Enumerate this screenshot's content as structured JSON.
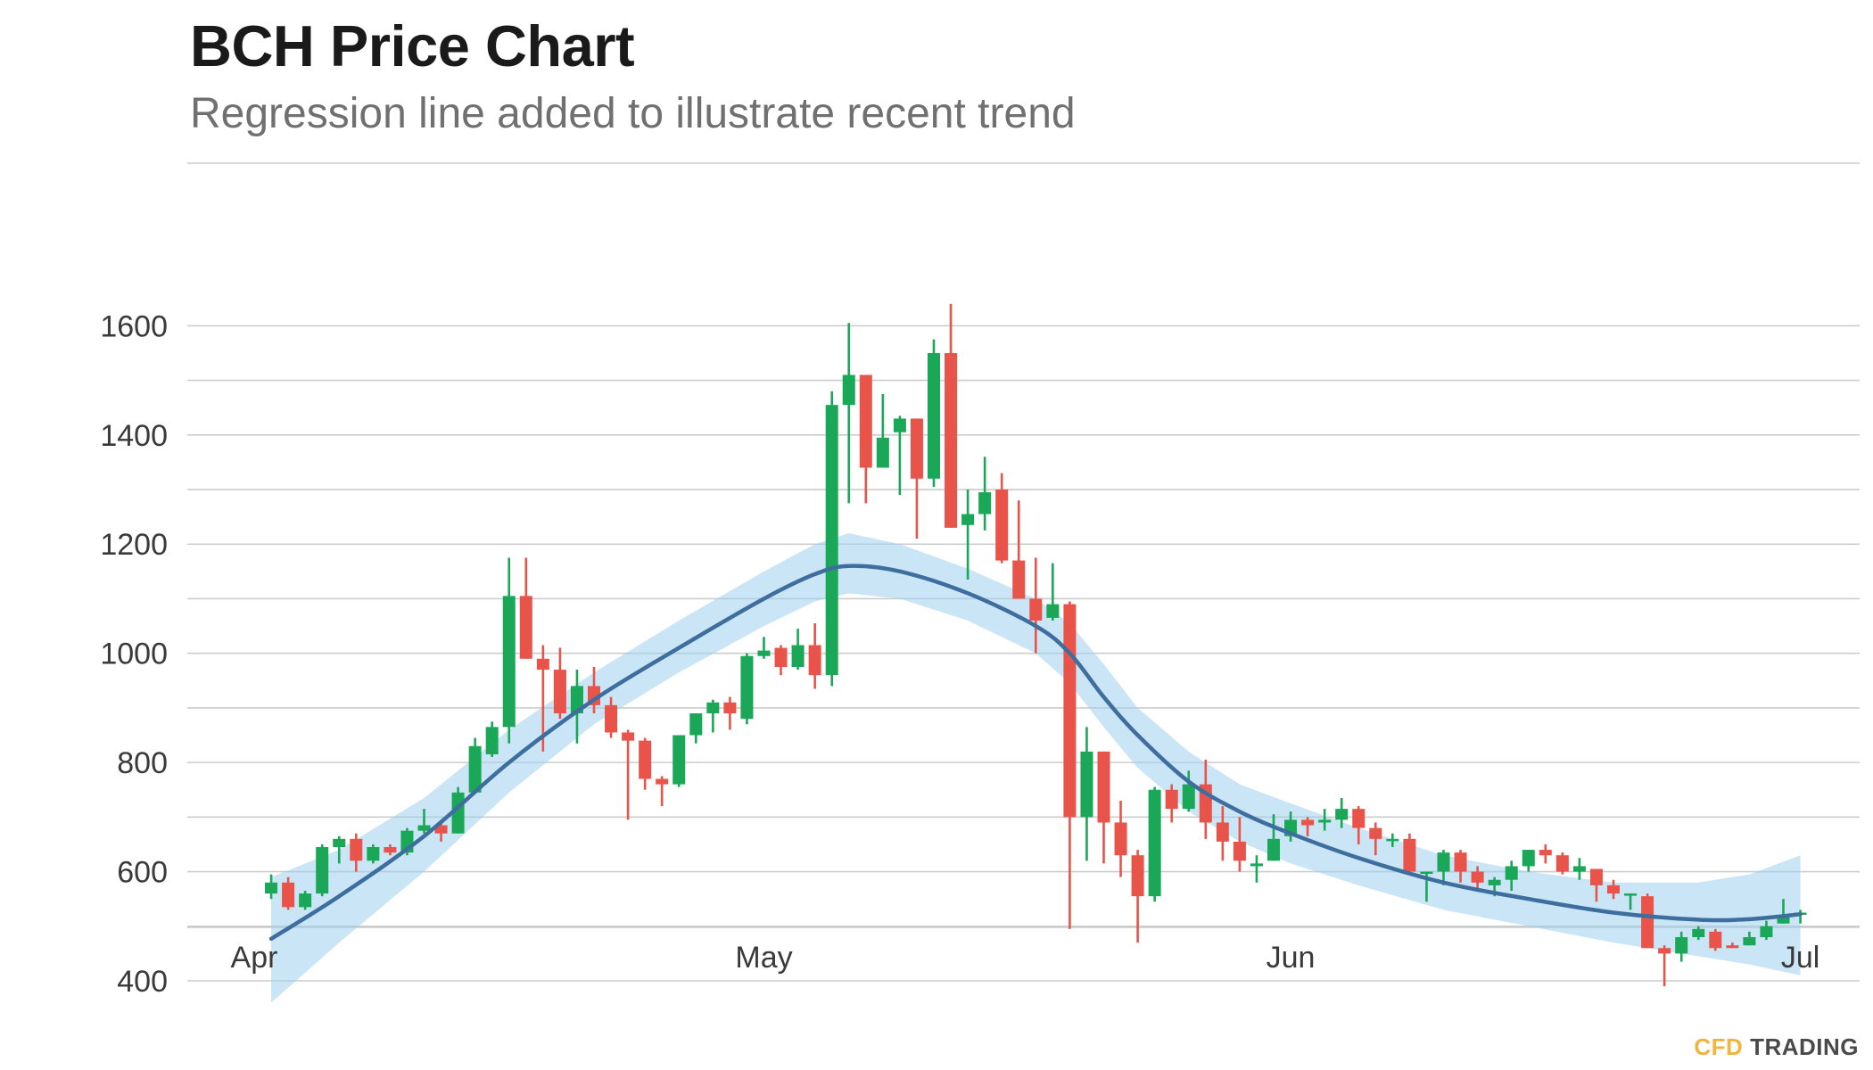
{
  "chart_data": {
    "type": "candlestick",
    "title": "BCH Price Chart",
    "subtitle": "Regression line added to illustrate recent trend",
    "xlabel": "",
    "ylabel": "",
    "ylim": [
      300,
      1650
    ],
    "yticks": [
      400,
      600,
      800,
      1000,
      1200,
      1400,
      1600
    ],
    "xticks": [
      {
        "label": "Apr",
        "day": 0
      },
      {
        "label": "May",
        "day": 30
      },
      {
        "label": "Jun",
        "day": 61
      },
      {
        "label": "Jul",
        "day": 91
      }
    ],
    "grid": true,
    "legend": "none",
    "colors": {
      "up": "#1aa757",
      "down": "#e8544a",
      "trend": "#3e6e9e",
      "band": "#9dd0ef"
    },
    "candles": [
      [
        1,
        560,
        580,
        595,
        550
      ],
      [
        2,
        580,
        535,
        590,
        530
      ],
      [
        3,
        535,
        560,
        565,
        530
      ],
      [
        4,
        560,
        645,
        650,
        555
      ],
      [
        5,
        645,
        660,
        665,
        615
      ],
      [
        6,
        660,
        620,
        670,
        600
      ],
      [
        7,
        620,
        645,
        650,
        615
      ],
      [
        8,
        645,
        635,
        650,
        630
      ],
      [
        9,
        635,
        675,
        680,
        630
      ],
      [
        10,
        675,
        685,
        715,
        670
      ],
      [
        11,
        685,
        670,
        690,
        655
      ],
      [
        12,
        670,
        745,
        755,
        670
      ],
      [
        13,
        745,
        830,
        845,
        745
      ],
      [
        14,
        815,
        865,
        875,
        810
      ],
      [
        15,
        865,
        1105,
        1175,
        835
      ],
      [
        16,
        1105,
        990,
        1175,
        990
      ],
      [
        17,
        990,
        970,
        1015,
        820
      ],
      [
        18,
        970,
        890,
        1010,
        880
      ],
      [
        19,
        890,
        940,
        970,
        835
      ],
      [
        20,
        940,
        905,
        975,
        890
      ],
      [
        21,
        905,
        855,
        920,
        845
      ],
      [
        22,
        855,
        840,
        860,
        695
      ],
      [
        23,
        840,
        770,
        845,
        750
      ],
      [
        24,
        770,
        760,
        775,
        720
      ],
      [
        25,
        760,
        850,
        850,
        755
      ],
      [
        26,
        850,
        890,
        890,
        835
      ],
      [
        27,
        890,
        910,
        915,
        855
      ],
      [
        28,
        910,
        890,
        920,
        860
      ],
      [
        29,
        880,
        995,
        1000,
        870
      ],
      [
        30,
        995,
        1005,
        1030,
        990
      ],
      [
        31,
        1010,
        975,
        1015,
        960
      ],
      [
        32,
        975,
        1015,
        1045,
        970
      ],
      [
        33,
        1015,
        960,
        1055,
        935
      ],
      [
        34,
        960,
        1455,
        1480,
        940
      ],
      [
        35,
        1455,
        1510,
        1605,
        1275
      ],
      [
        36,
        1510,
        1340,
        1510,
        1275
      ],
      [
        37,
        1340,
        1395,
        1475,
        1345
      ],
      [
        38,
        1405,
        1430,
        1435,
        1290
      ],
      [
        39,
        1430,
        1320,
        1430,
        1210
      ],
      [
        40,
        1320,
        1550,
        1575,
        1305
      ],
      [
        41,
        1550,
        1230,
        1640,
        1230
      ],
      [
        42,
        1235,
        1255,
        1300,
        1135
      ],
      [
        43,
        1255,
        1295,
        1360,
        1225
      ],
      [
        44,
        1300,
        1170,
        1330,
        1165
      ],
      [
        45,
        1170,
        1100,
        1280,
        1100
      ],
      [
        46,
        1100,
        1060,
        1175,
        1000
      ],
      [
        47,
        1065,
        1090,
        1165,
        1060
      ],
      [
        48,
        1090,
        700,
        1095,
        495
      ],
      [
        49,
        700,
        820,
        865,
        620
      ],
      [
        50,
        820,
        690,
        820,
        615
      ],
      [
        51,
        690,
        630,
        730,
        590
      ],
      [
        52,
        630,
        555,
        640,
        470
      ],
      [
        53,
        555,
        750,
        755,
        545
      ],
      [
        54,
        750,
        715,
        760,
        690
      ],
      [
        55,
        715,
        760,
        785,
        710
      ],
      [
        56,
        760,
        690,
        805,
        660
      ],
      [
        57,
        690,
        655,
        720,
        620
      ],
      [
        58,
        655,
        620,
        700,
        600
      ],
      [
        59,
        610,
        615,
        630,
        580
      ],
      [
        60,
        620,
        660,
        705,
        620
      ],
      [
        61,
        665,
        695,
        710,
        655
      ],
      [
        62,
        695,
        685,
        700,
        665
      ],
      [
        63,
        690,
        695,
        715,
        675
      ],
      [
        64,
        695,
        715,
        735,
        680
      ],
      [
        65,
        715,
        680,
        720,
        650
      ],
      [
        66,
        680,
        660,
        690,
        630
      ],
      [
        67,
        660,
        660,
        670,
        645
      ],
      [
        68,
        660,
        600,
        670,
        595
      ],
      [
        69,
        600,
        600,
        600,
        545
      ],
      [
        70,
        600,
        635,
        640,
        575
      ],
      [
        71,
        635,
        600,
        640,
        580
      ],
      [
        72,
        600,
        580,
        610,
        570
      ],
      [
        73,
        575,
        585,
        590,
        555
      ],
      [
        74,
        585,
        610,
        620,
        565
      ],
      [
        75,
        610,
        640,
        640,
        600
      ],
      [
        76,
        640,
        630,
        650,
        615
      ],
      [
        77,
        630,
        600,
        635,
        595
      ],
      [
        78,
        600,
        610,
        625,
        585
      ],
      [
        79,
        605,
        575,
        605,
        545
      ],
      [
        80,
        575,
        560,
        585,
        550
      ],
      [
        81,
        560,
        560,
        560,
        530
      ],
      [
        82,
        555,
        460,
        560,
        460
      ],
      [
        83,
        460,
        450,
        465,
        390
      ],
      [
        84,
        450,
        480,
        490,
        435
      ],
      [
        85,
        480,
        495,
        500,
        475
      ],
      [
        86,
        490,
        460,
        495,
        455
      ],
      [
        87,
        465,
        460,
        470,
        460
      ],
      [
        88,
        465,
        480,
        490,
        465
      ],
      [
        89,
        480,
        500,
        510,
        475
      ],
      [
        90,
        505,
        520,
        550,
        505
      ],
      [
        91,
        525,
        525,
        530,
        505
      ]
    ],
    "trend": [
      [
        1,
        477
      ],
      [
        5,
        555
      ],
      [
        10,
        665
      ],
      [
        15,
        800
      ],
      [
        20,
        915
      ],
      [
        25,
        1010
      ],
      [
        30,
        1100
      ],
      [
        33,
        1145
      ],
      [
        35,
        1160
      ],
      [
        38,
        1150
      ],
      [
        42,
        1110
      ],
      [
        46,
        1050
      ],
      [
        48,
        1000
      ],
      [
        50,
        920
      ],
      [
        52,
        850
      ],
      [
        55,
        765
      ],
      [
        58,
        710
      ],
      [
        61,
        670
      ],
      [
        65,
        625
      ],
      [
        70,
        580
      ],
      [
        75,
        550
      ],
      [
        80,
        525
      ],
      [
        85,
        512
      ],
      [
        88,
        513
      ],
      [
        91,
        522
      ]
    ],
    "band": [
      [
        1,
        360,
        590
      ],
      [
        5,
        470,
        640
      ],
      [
        10,
        600,
        735
      ],
      [
        15,
        745,
        860
      ],
      [
        20,
        870,
        965
      ],
      [
        25,
        965,
        1060
      ],
      [
        30,
        1050,
        1150
      ],
      [
        33,
        1095,
        1200
      ],
      [
        35,
        1110,
        1220
      ],
      [
        38,
        1100,
        1200
      ],
      [
        42,
        1060,
        1155
      ],
      [
        46,
        1000,
        1100
      ],
      [
        48,
        945,
        1055
      ],
      [
        50,
        865,
        980
      ],
      [
        52,
        790,
        900
      ],
      [
        55,
        710,
        820
      ],
      [
        58,
        655,
        760
      ],
      [
        61,
        615,
        725
      ],
      [
        65,
        575,
        680
      ],
      [
        70,
        530,
        630
      ],
      [
        75,
        500,
        600
      ],
      [
        80,
        470,
        580
      ],
      [
        85,
        445,
        580
      ],
      [
        88,
        430,
        595
      ],
      [
        91,
        410,
        630
      ]
    ]
  },
  "brand": {
    "part1": "CFD",
    "part2": "TRADING"
  }
}
